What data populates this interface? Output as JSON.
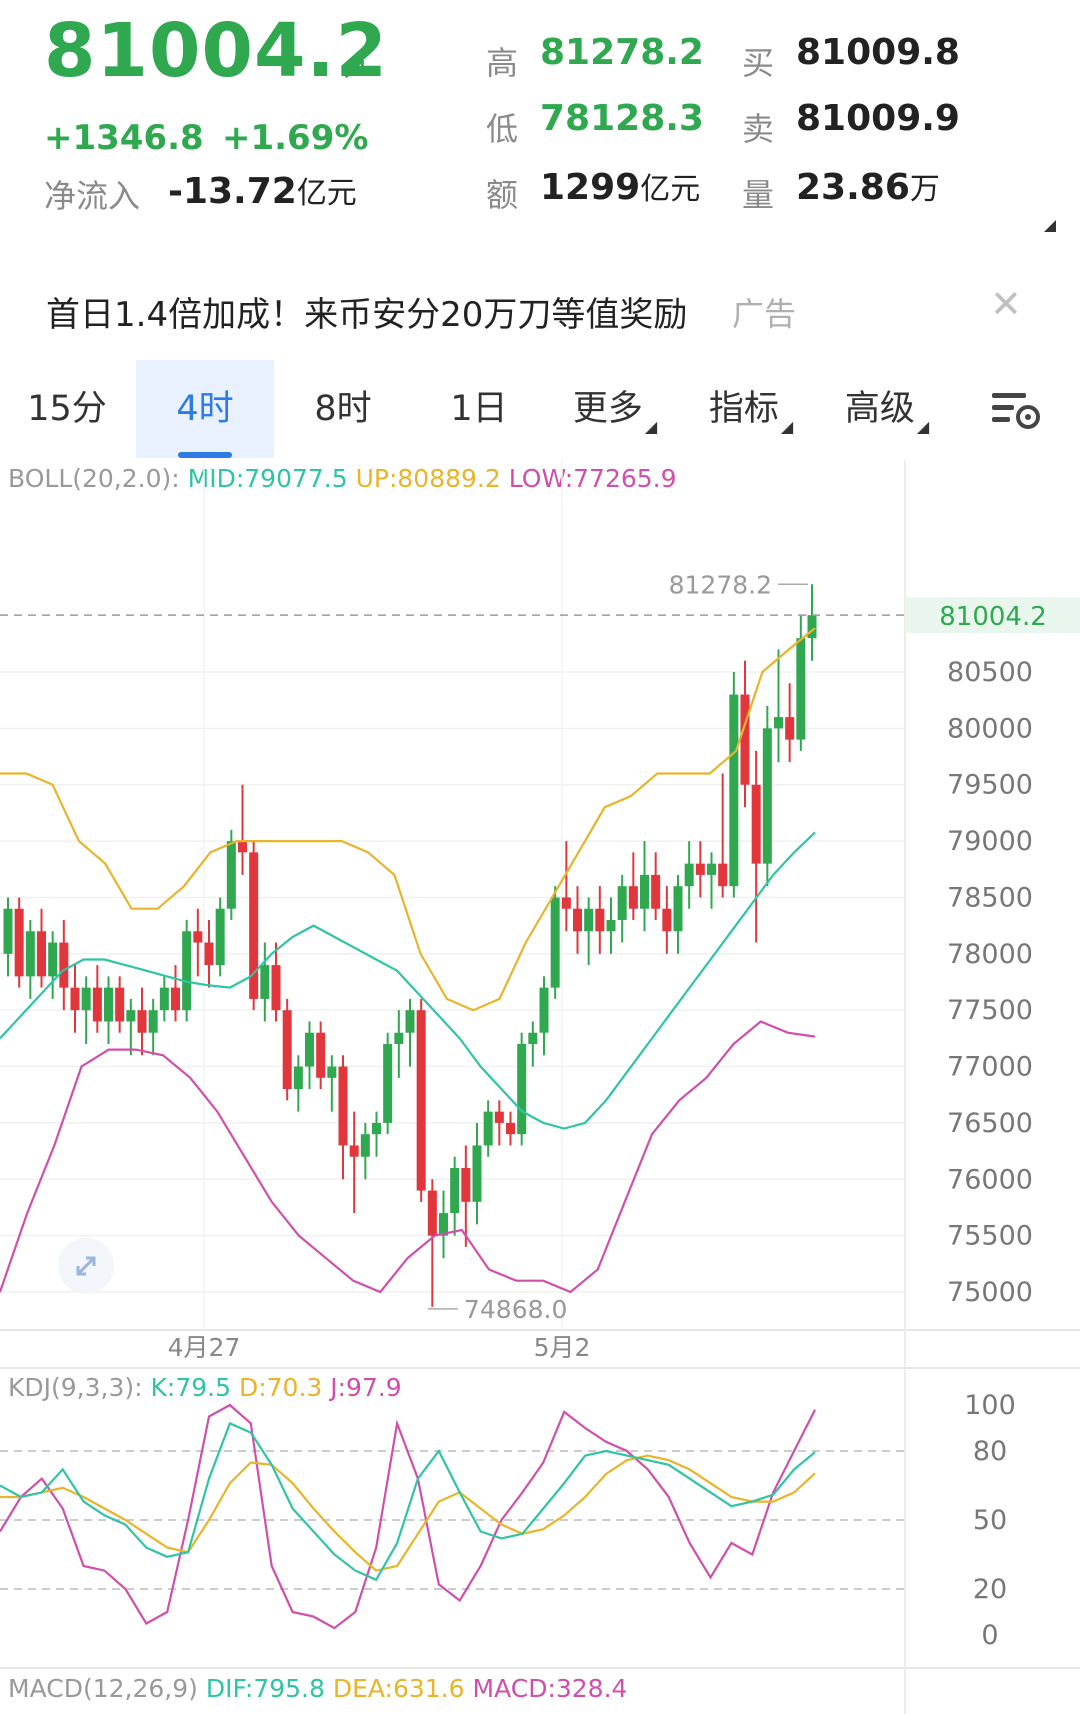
{
  "quote": {
    "price": "81004.2",
    "change": "+1346.8",
    "change_pct": "+1.69%",
    "netflow_label": "净流入",
    "netflow_value": "-13.72",
    "netflow_unit": "亿元",
    "high_label": "高",
    "high": "81278.2",
    "low_label": "低",
    "low": "78128.3",
    "amount_label": "额",
    "amount": "1299",
    "amount_unit": "亿元",
    "bid_label": "买",
    "bid": "81009.8",
    "ask_label": "卖",
    "ask": "81009.9",
    "volume_label": "量",
    "volume": "23.86",
    "volume_unit": "万"
  },
  "ad": {
    "text": "首日1.4倍加成！来币安分20万刀等值奖励",
    "tag": "广告"
  },
  "tabs": [
    {
      "label": "15分",
      "active": false
    },
    {
      "label": "4时",
      "active": true
    },
    {
      "label": "8时",
      "active": false
    },
    {
      "label": "1日",
      "active": false
    },
    {
      "label": "更多",
      "active": false
    },
    {
      "label": "指标",
      "active": false
    },
    {
      "label": "高级",
      "active": false
    }
  ],
  "icons": {
    "arrow": "up-right-arrow-icon",
    "close": "close-icon",
    "settings": "chart-settings-icon",
    "expand": "expand-icon",
    "caret": "dropdown-caret-icon"
  },
  "colors": {
    "up": "#2fa84f",
    "down": "#e0363c",
    "mid": "#2ec4a4",
    "upper": "#e8b42a",
    "lower": "#d04faa",
    "active_tab": "#2d7be5"
  },
  "indicators": {
    "boll": {
      "name": "BOLL(20,2.0):",
      "mid": "MID:79077.5",
      "up": "UP:80889.2",
      "low": "LOW:77265.9"
    },
    "kdj": {
      "name": "KDJ(9,3,3):",
      "k": "K:79.5",
      "d": "D:70.3",
      "j": "J:97.9"
    },
    "macd": {
      "name": "MACD(12,26,9)",
      "dif": "DIF:795.8",
      "dea": "DEA:631.6",
      "macd": "MACD:328.4"
    }
  },
  "chart_data": [
    {
      "type": "candlestick",
      "title": "",
      "y_ticks": [
        75000,
        75500,
        76000,
        76500,
        77000,
        77500,
        78000,
        78500,
        79000,
        79500,
        80000,
        80500
      ],
      "ylim": [
        74700,
        81500
      ],
      "current_price": "81004.2",
      "max_label": "81278.2",
      "min_label": "74868.0",
      "x_labels": [
        "4月27",
        "5月2"
      ],
      "candles": [
        [
          78000,
          78500,
          77800,
          78400
        ],
        [
          78400,
          78500,
          77700,
          77800
        ],
        [
          77800,
          78300,
          77600,
          78200
        ],
        [
          78200,
          78400,
          77700,
          77800
        ],
        [
          77800,
          78200,
          77600,
          78100
        ],
        [
          78100,
          78300,
          77500,
          77700
        ],
        [
          77700,
          77900,
          77300,
          77500
        ],
        [
          77500,
          77800,
          77200,
          77700
        ],
        [
          77700,
          77900,
          77300,
          77400
        ],
        [
          77400,
          77800,
          77200,
          77700
        ],
        [
          77700,
          77800,
          77300,
          77400
        ],
        [
          77400,
          77600,
          77100,
          77500
        ],
        [
          77500,
          77700,
          77100,
          77300
        ],
        [
          77300,
          77600,
          77100,
          77500
        ],
        [
          77500,
          77800,
          77400,
          77700
        ],
        [
          77700,
          77900,
          77400,
          77500
        ],
        [
          77500,
          78300,
          77400,
          78200
        ],
        [
          78200,
          78400,
          77800,
          78100
        ],
        [
          78100,
          78300,
          77700,
          77900
        ],
        [
          77900,
          78500,
          77800,
          78400
        ],
        [
          78400,
          79100,
          78300,
          79000
        ],
        [
          79000,
          79500,
          78700,
          78900
        ],
        [
          78900,
          79000,
          77500,
          77600
        ],
        [
          77600,
          78100,
          77400,
          77900
        ],
        [
          77900,
          78100,
          77400,
          77500
        ],
        [
          77500,
          77600,
          76700,
          76800
        ],
        [
          76800,
          77100,
          76600,
          77000
        ],
        [
          77000,
          77400,
          76800,
          77300
        ],
        [
          77300,
          77400,
          76800,
          76900
        ],
        [
          76900,
          77100,
          76600,
          77000
        ],
        [
          77000,
          77100,
          76000,
          76300
        ],
        [
          76300,
          76600,
          75700,
          76200
        ],
        [
          76200,
          76500,
          76000,
          76400
        ],
        [
          76400,
          76600,
          76200,
          76500
        ],
        [
          76500,
          77300,
          76400,
          77200
        ],
        [
          77200,
          77500,
          76900,
          77300
        ],
        [
          77300,
          77600,
          77000,
          77500
        ],
        [
          77500,
          77600,
          75800,
          75900
        ],
        [
          75900,
          76000,
          74868,
          75500
        ],
        [
          75500,
          75900,
          75300,
          75700
        ],
        [
          75700,
          76200,
          75500,
          76100
        ],
        [
          76100,
          76300,
          75400,
          75800
        ],
        [
          75800,
          76500,
          75600,
          76300
        ],
        [
          76300,
          76700,
          76200,
          76600
        ],
        [
          76600,
          76700,
          76300,
          76500
        ],
        [
          76500,
          76600,
          76300,
          76400
        ],
        [
          76400,
          77300,
          76300,
          77200
        ],
        [
          77200,
          77400,
          77000,
          77300
        ],
        [
          77300,
          77800,
          77100,
          77700
        ],
        [
          77700,
          78600,
          77600,
          78500
        ],
        [
          78500,
          79000,
          78200,
          78400
        ],
        [
          78400,
          78600,
          78000,
          78200
        ],
        [
          78200,
          78500,
          77900,
          78400
        ],
        [
          78400,
          78600,
          78000,
          78200
        ],
        [
          78200,
          78500,
          78000,
          78300
        ],
        [
          78300,
          78700,
          78100,
          78600
        ],
        [
          78600,
          78900,
          78300,
          78400
        ],
        [
          78400,
          79000,
          78200,
          78700
        ],
        [
          78700,
          78900,
          78300,
          78400
        ],
        [
          78400,
          78600,
          78000,
          78200
        ],
        [
          78200,
          78700,
          78000,
          78600
        ],
        [
          78600,
          79000,
          78400,
          78800
        ],
        [
          78800,
          79000,
          78500,
          78700
        ],
        [
          78700,
          78900,
          78400,
          78800
        ],
        [
          78800,
          79600,
          78500,
          78600
        ],
        [
          78600,
          80500,
          78500,
          80300
        ],
        [
          80300,
          80600,
          79300,
          79500
        ],
        [
          79500,
          79800,
          78100,
          78800
        ],
        [
          78800,
          80200,
          78600,
          80000
        ],
        [
          80000,
          80700,
          79700,
          80100
        ],
        [
          80100,
          80400,
          79700,
          79900
        ],
        [
          79900,
          81000,
          79800,
          80800
        ],
        [
          80800,
          81278.2,
          80600,
          81004.2
        ]
      ],
      "boll_mid": [
        77250,
        77450,
        77650,
        77850,
        77950,
        77950,
        77900,
        77850,
        77800,
        77750,
        77720,
        77700,
        77800,
        78000,
        78150,
        78250,
        78150,
        78050,
        77950,
        77850,
        77650,
        77450,
        77250,
        77000,
        76800,
        76600,
        76500,
        76450,
        76500,
        76700,
        76950,
        77200,
        77450,
        77700,
        77950,
        78200,
        78450,
        78700,
        78900,
        79077.5
      ],
      "boll_up": [
        79600,
        79600,
        79500,
        79000,
        78800,
        78400,
        78400,
        78600,
        78900,
        79000,
        79000,
        79000,
        79000,
        79000,
        78900,
        78700,
        78000,
        77600,
        77500,
        77600,
        78100,
        78500,
        78900,
        79300,
        79400,
        79600,
        79600,
        79600,
        79800,
        80500,
        80700,
        80889.2
      ],
      "boll_low": [
        75000,
        75700,
        76300,
        77000,
        77150,
        77150,
        77100,
        76900,
        76600,
        76200,
        75800,
        75500,
        75300,
        75100,
        75000,
        75300,
        75500,
        75550,
        75200,
        75100,
        75100,
        75000,
        75200,
        75800,
        76400,
        76700,
        76900,
        77200,
        77400,
        77300,
        77265.9
      ],
      "kdj_ticks": [
        0,
        20,
        50,
        80,
        100
      ],
      "kdj_k": [
        65,
        60,
        62,
        72,
        58,
        52,
        48,
        38,
        34,
        36,
        68,
        92,
        88,
        74,
        55,
        45,
        35,
        28,
        24,
        40,
        68,
        80,
        62,
        45,
        42,
        44,
        55,
        66,
        78,
        80,
        78,
        76,
        74,
        68,
        62,
        56,
        58,
        61,
        72,
        79.5
      ],
      "kdj_d": [
        60,
        60,
        62,
        64,
        60,
        55,
        50,
        44,
        38,
        36,
        50,
        66,
        75,
        74,
        66,
        55,
        45,
        36,
        28,
        30,
        44,
        58,
        62,
        55,
        48,
        44,
        46,
        52,
        60,
        70,
        76,
        78,
        76,
        72,
        66,
        60,
        58,
        58,
        62,
        70.3
      ],
      "kdj_j": [
        45,
        60,
        68,
        55,
        30,
        28,
        20,
        5,
        10,
        50,
        95,
        100,
        92,
        30,
        10,
        8,
        3,
        10,
        38,
        92,
        68,
        22,
        15,
        30,
        50,
        62,
        75,
        97,
        90,
        84,
        80,
        72,
        60,
        40,
        25,
        40,
        35,
        62,
        80,
        97.9
      ]
    }
  ]
}
